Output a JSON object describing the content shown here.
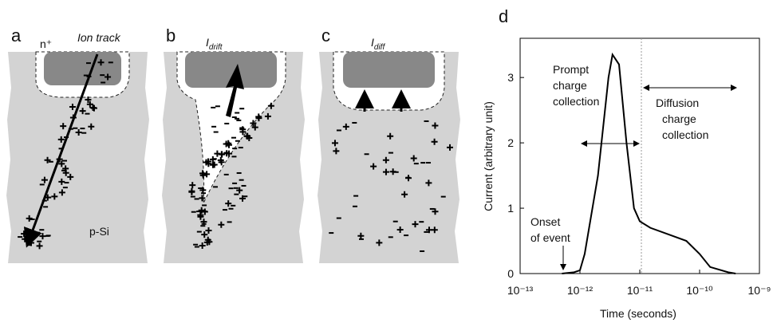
{
  "panels": [
    {
      "label": "a",
      "top_label": "n⁺",
      "track_label": "Ion track",
      "region_label": "p-Si"
    },
    {
      "label": "b",
      "current_main": "I",
      "current_sub": "drift"
    },
    {
      "label": "c",
      "current_main": "I",
      "current_sub": "diff"
    }
  ],
  "chart_data": {
    "type": "line",
    "label": "d",
    "x_label": "Time (seconds)",
    "y_label": "Current (arbitrary unit)",
    "x_scale": "log",
    "x": [
      5e-13,
      8e-13,
      1e-12,
      1.2e-12,
      2e-12,
      3e-12,
      3.5e-12,
      4.5e-12,
      6e-12,
      8e-12,
      1e-11,
      1.5e-11,
      3e-11,
      6e-11,
      1e-10,
      1.5e-10,
      3e-10,
      4e-10
    ],
    "values": [
      0,
      0.02,
      0.05,
      0.3,
      1.5,
      3.0,
      3.35,
      3.2,
      2.0,
      1.0,
      0.8,
      0.7,
      0.6,
      0.5,
      0.3,
      0.1,
      0.02,
      0
    ],
    "color": "#000000",
    "xlim": [
      1e-13,
      1e-09
    ],
    "xticks": [
      {
        "value": 1e-13,
        "label": "10⁻¹³"
      },
      {
        "value": 1e-12,
        "label": "10⁻¹²"
      },
      {
        "value": 1e-11,
        "label": "10⁻¹¹"
      },
      {
        "value": 1e-10,
        "label": "10⁻¹⁰"
      },
      {
        "value": 1e-09,
        "label": "10⁻⁹"
      }
    ],
    "ylim": [
      0,
      3.6
    ],
    "yticks": [
      0,
      1,
      2,
      3
    ],
    "annotations": [
      "Prompt",
      "charge",
      "collection",
      "Diffusion",
      "charge",
      "collection",
      "Onset",
      "of event"
    ]
  }
}
